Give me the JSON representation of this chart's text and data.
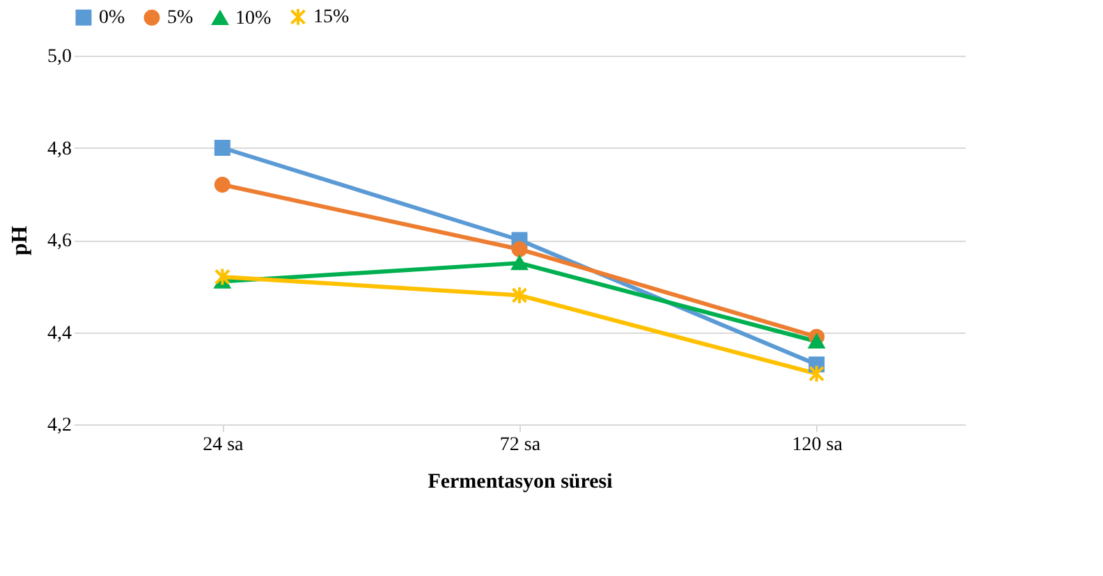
{
  "chart_data": {
    "type": "line",
    "xlabel": "Fermentasyon süresi",
    "ylabel": "pH",
    "categories": [
      "24 sa",
      "72 sa",
      "120 sa"
    ],
    "series": [
      {
        "name": "0%",
        "color": "#5b9bd5",
        "marker": "square",
        "values": [
          4.8,
          4.6,
          4.33
        ]
      },
      {
        "name": "5%",
        "color": "#ed7d31",
        "marker": "circle",
        "values": [
          4.72,
          4.58,
          4.39
        ]
      },
      {
        "name": "10%",
        "color": "#00b050",
        "marker": "triangle",
        "values": [
          4.51,
          4.55,
          4.38
        ]
      },
      {
        "name": "15%",
        "color": "#ffc000",
        "marker": "cross",
        "values": [
          4.52,
          4.48,
          4.31
        ]
      }
    ],
    "ylim": [
      4.2,
      5.0
    ],
    "yticks": [
      {
        "value": 4.2,
        "label": "4,2"
      },
      {
        "value": 4.4,
        "label": "4,4"
      },
      {
        "value": 4.6,
        "label": "4,6"
      },
      {
        "value": 4.8,
        "label": "4,8"
      },
      {
        "value": 5.0,
        "label": "5,0"
      }
    ],
    "grid": "y",
    "legend": "top",
    "line_style": "solid"
  }
}
